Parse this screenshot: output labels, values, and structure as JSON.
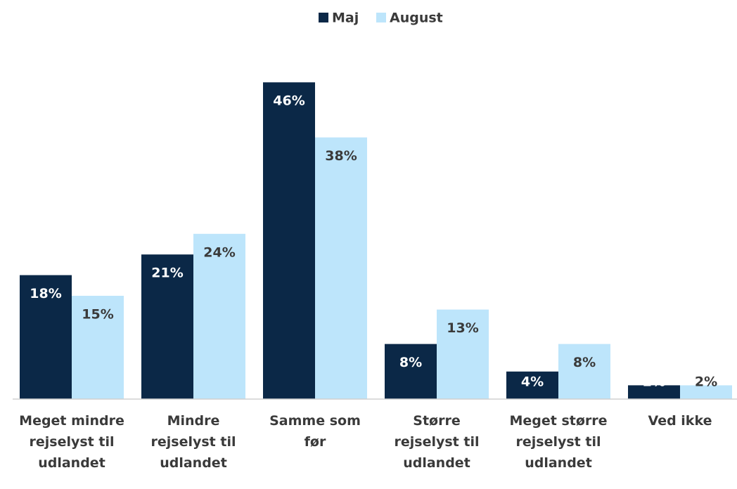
{
  "chart_data": {
    "type": "bar",
    "categories": [
      "Meget mindre rejselyst til udlandet",
      "Mindre rejselyst til udlandet",
      "Samme som før",
      "Større rejselyst til udlandet",
      "Meget større rejselyst til udlandet",
      "Ved ikke"
    ],
    "series": [
      {
        "name": "Maj",
        "color": "#0b2847",
        "values": [
          18,
          21,
          46,
          8,
          4,
          2
        ],
        "value_labels": [
          "18%",
          "21%",
          "46%",
          "8%",
          "4%",
          "2%"
        ]
      },
      {
        "name": "August",
        "color": "#bde5fb",
        "values": [
          15,
          24,
          38,
          13,
          8,
          2
        ],
        "value_labels": [
          "15%",
          "24%",
          "38%",
          "13%",
          "8%",
          "2%"
        ]
      }
    ],
    "legend": "top"
  }
}
